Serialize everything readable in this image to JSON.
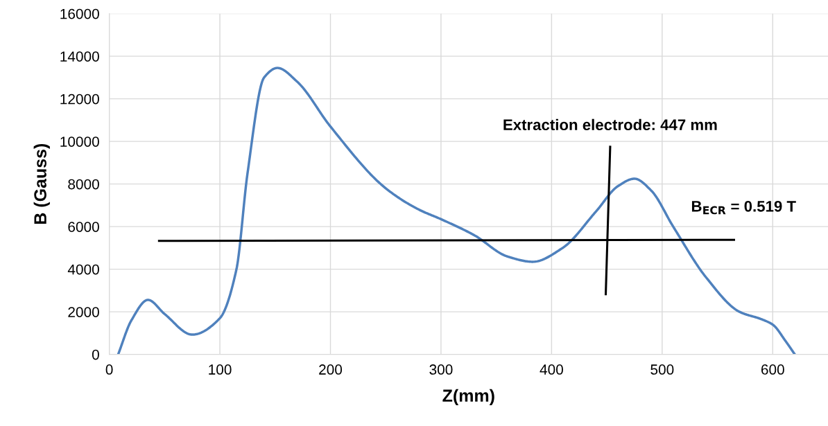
{
  "chart_data": {
    "type": "line",
    "xlabel": "Z(mm)",
    "ylabel": "B (Gauss)",
    "xlim": [
      0,
      650
    ],
    "xticks": [
      0,
      100,
      200,
      300,
      400,
      500,
      600
    ],
    "ylim": [
      0,
      16000
    ],
    "yticks": [
      0,
      2000,
      4000,
      6000,
      8000,
      10000,
      12000,
      14000,
      16000
    ],
    "grid": true,
    "marker": "none",
    "line_style": "solid",
    "series": [
      {
        "color": "#4f81bd",
        "x": [
          8,
          20,
          35,
          50,
          75,
          100,
          115,
          125,
          140,
          152,
          170,
          200,
          250,
          280,
          300,
          330,
          360,
          383,
          410,
          440,
          460,
          475,
          490,
          510,
          540,
          570,
          590,
          600,
          612,
          620
        ],
        "values": [
          0,
          1600,
          2560,
          1900,
          930,
          1700,
          4000,
          8500,
          13000,
          13450,
          12800,
          10700,
          7800,
          6800,
          6350,
          5600,
          4600,
          4350,
          5000,
          6700,
          7900,
          8250,
          7700,
          6000,
          3600,
          2000,
          1650,
          1400,
          600,
          0
        ]
      },
      {
        "color": "#000000",
        "x": [
          45,
          565
        ],
        "values": [
          5330,
          5380
        ]
      },
      {
        "color": "#000000",
        "x": [
          453,
          449
        ],
        "values": [
          9750,
          2830
        ]
      }
    ],
    "annotations": [
      "Extraction electrode: 447 mm",
      "B$_{ECR}$ = 0.519 T"
    ]
  }
}
